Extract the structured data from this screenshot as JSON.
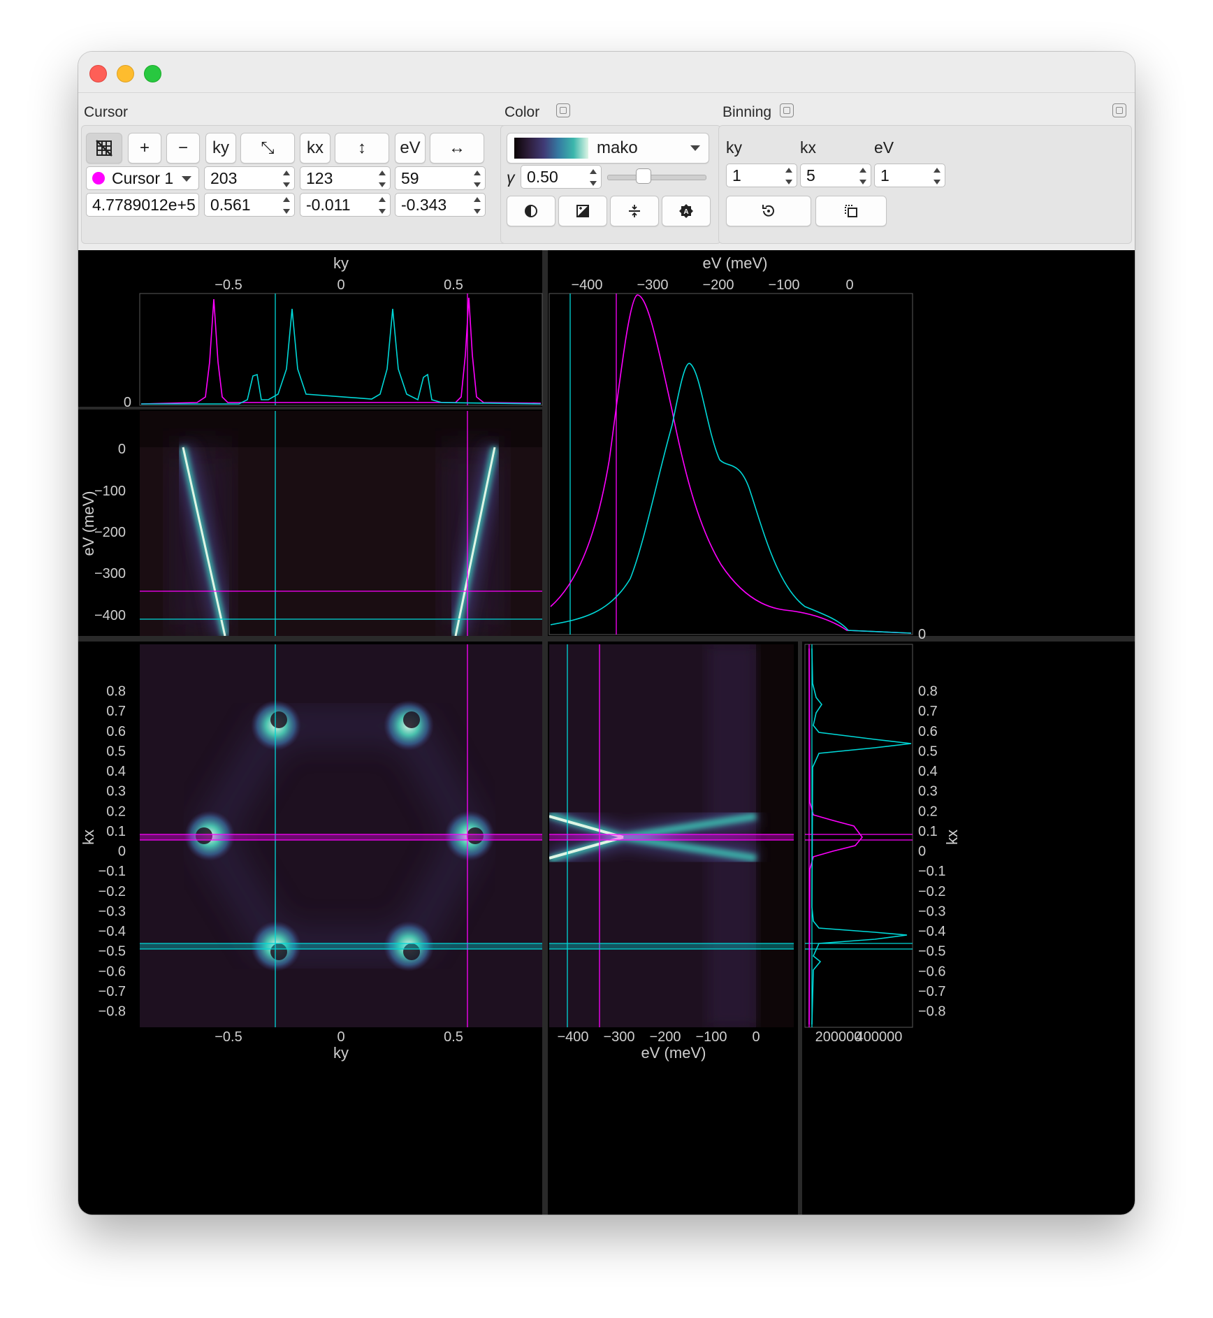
{
  "cursor_section": {
    "title": "Cursor",
    "toolbar": [
      {
        "name": "snap-grid-icon",
        "label": ""
      },
      {
        "name": "add-cursor-button",
        "label": "+"
      },
      {
        "name": "remove-cursor-button",
        "label": "−"
      },
      {
        "name": "ky-toggle",
        "label": "ky"
      },
      {
        "name": "diagonal-arrow-icon",
        "label": "⤡"
      },
      {
        "name": "kx-toggle",
        "label": "kx"
      },
      {
        "name": "vertical-arrow-icon",
        "label": "↕"
      },
      {
        "name": "ev-toggle",
        "label": "eV"
      },
      {
        "name": "horizontal-arrow-icon",
        "label": "↔"
      }
    ],
    "cursor_select": "Cursor 1",
    "cursor_color": "#ff00ff",
    "index_ky": "203",
    "index_kx": "123",
    "index_ev": "59",
    "value_intensity": "4.7789012e+5",
    "value_ky": "0.561",
    "value_kx": "-0.011",
    "value_ev": "-0.343"
  },
  "color_section": {
    "title": "Color",
    "colormap": "mako",
    "gamma_symbol": "γ",
    "gamma": "0.50",
    "gamma_slider_fraction": 0.35,
    "buttons": [
      "invert-icon",
      "reverse-colormap-icon",
      "high-contrast-icon",
      "auto-scale-icon"
    ]
  },
  "binning_section": {
    "title": "Binning",
    "labels": [
      "ky",
      "kx",
      "eV"
    ],
    "values": [
      "1",
      "5",
      "1"
    ],
    "buttons": [
      "reset-binning-icon",
      "copy-icon"
    ]
  },
  "colors": {
    "cursor1": "#ff00ff",
    "cursor2": "#00d8d8",
    "plot_bg": "#000000",
    "axis": "#d0d0d0"
  },
  "plots": {
    "top_left": {
      "xlabel": "ky",
      "xticks": [
        "−0.5",
        "0",
        "0.5"
      ],
      "yticks": [
        "0"
      ]
    },
    "top_right": {
      "xlabel": "eV (meV)",
      "xticks": [
        "−400",
        "−300",
        "−200",
        "−100",
        "0"
      ],
      "yticks": [
        "0"
      ]
    },
    "middle_left": {
      "ylabel": "eV (meV)",
      "yticks": [
        "0",
        "−100",
        "−200",
        "−300",
        "−400"
      ]
    },
    "bottom_left": {
      "xlabel": "ky",
      "ylabel": "kx",
      "xticks": [
        "−0.5",
        "0",
        "0.5"
      ],
      "yticks": [
        "0.8",
        "0.7",
        "0.6",
        "0.5",
        "0.4",
        "0.3",
        "0.2",
        "0.1",
        "0",
        "−0.1",
        "−0.2",
        "−0.3",
        "−0.4",
        "−0.5",
        "−0.6",
        "−0.7",
        "−0.8"
      ]
    },
    "bottom_middle": {
      "xlabel": "eV (meV)",
      "xticks": [
        "−400",
        "−300",
        "−200",
        "−100",
        "0"
      ]
    },
    "bottom_right": {
      "ylabel": "kx",
      "xticks": [
        "200000",
        "400000"
      ],
      "yticks": [
        "0.8",
        "0.7",
        "0.6",
        "0.5",
        "0.4",
        "0.3",
        "0.2",
        "0.1",
        "0",
        "−0.1",
        "−0.2",
        "−0.3",
        "−0.4",
        "−0.5",
        "−0.6",
        "−0.7",
        "−0.8"
      ]
    }
  }
}
